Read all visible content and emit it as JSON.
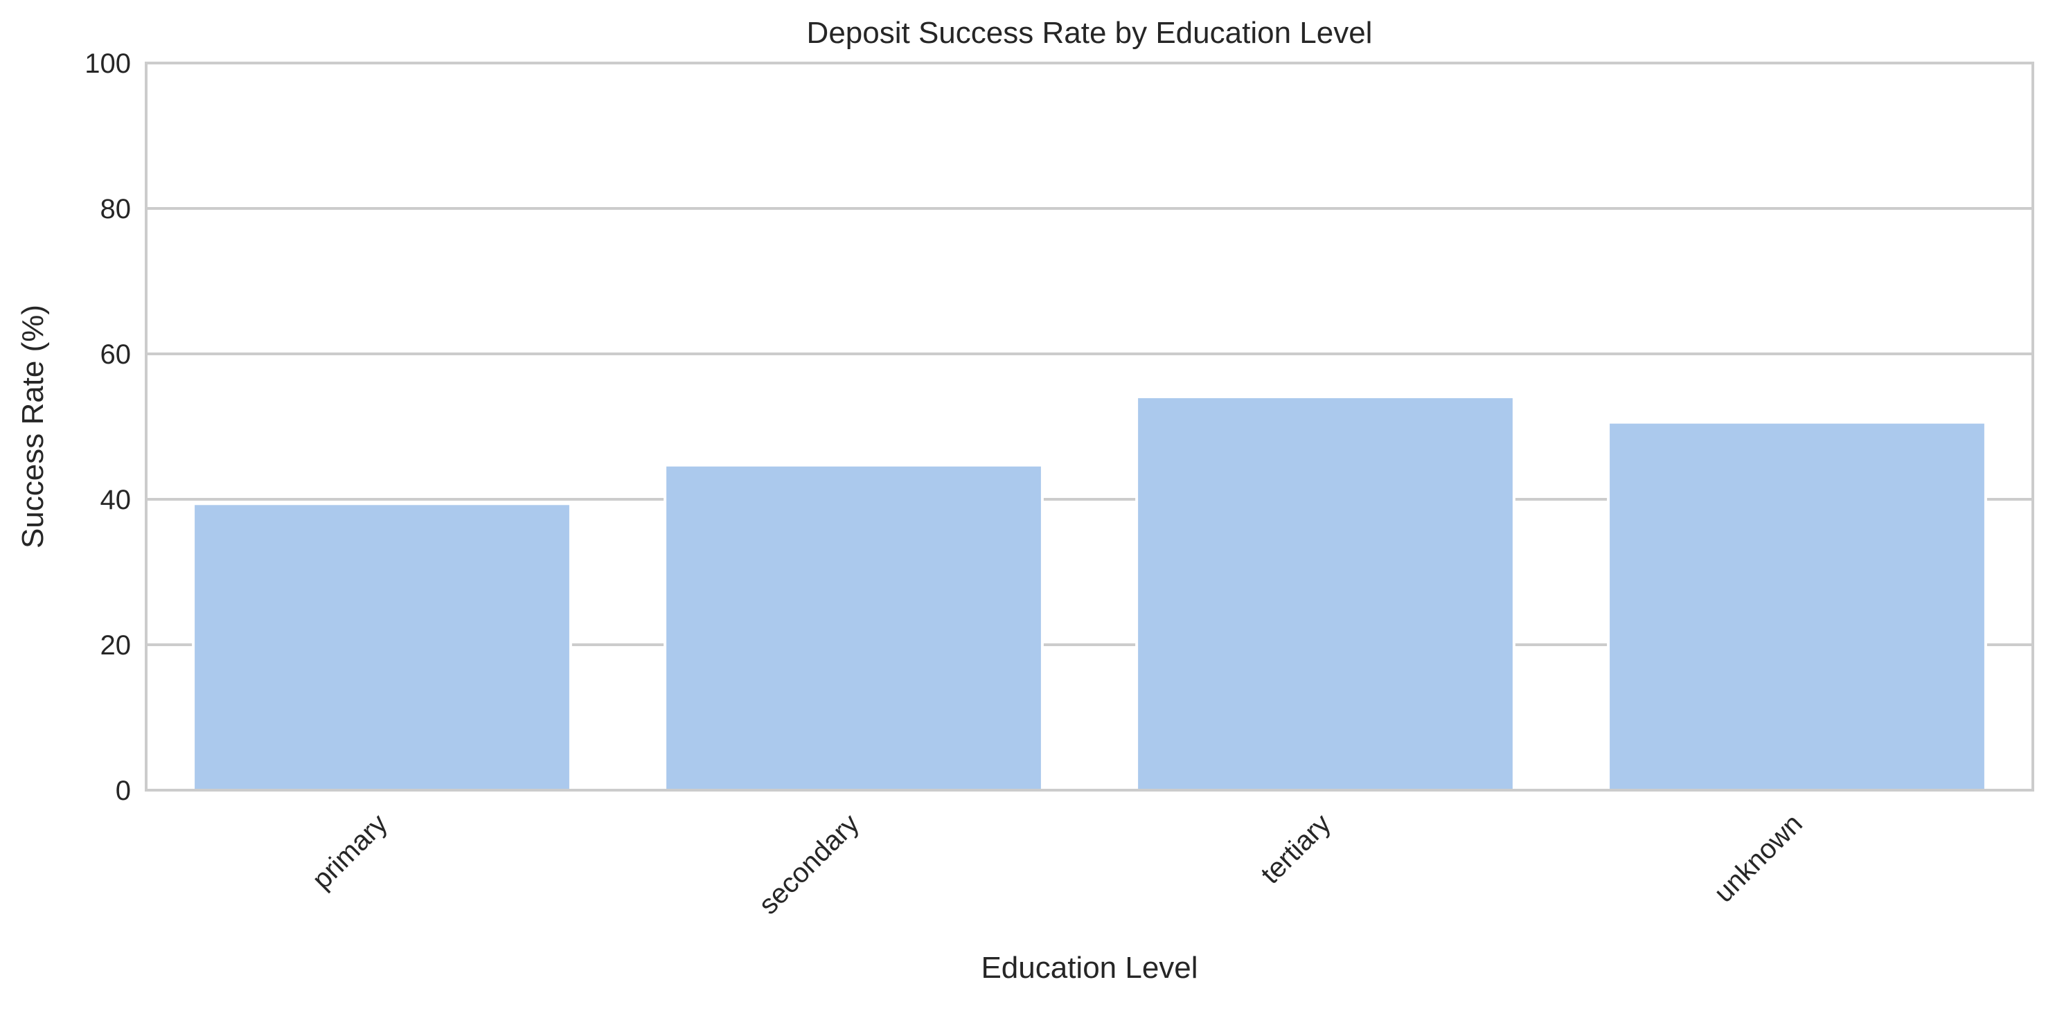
{
  "chart_data": {
    "type": "bar",
    "title": "Deposit Success Rate by Education Level",
    "xlabel": "Education Level",
    "ylabel": "Success Rate (%)",
    "categories": [
      "primary",
      "secondary",
      "tertiary",
      "unknown"
    ],
    "values": [
      39.4,
      44.7,
      54.1,
      50.6
    ],
    "ylim": [
      0,
      100
    ],
    "yticks": [
      "0",
      "20",
      "40",
      "60",
      "80",
      "100"
    ],
    "grid": "horizontal",
    "legend": "none",
    "colors": {
      "bar": "#abc9ed",
      "grid": "#cccccc",
      "axis": "#cccccc",
      "text": "#262626"
    }
  }
}
